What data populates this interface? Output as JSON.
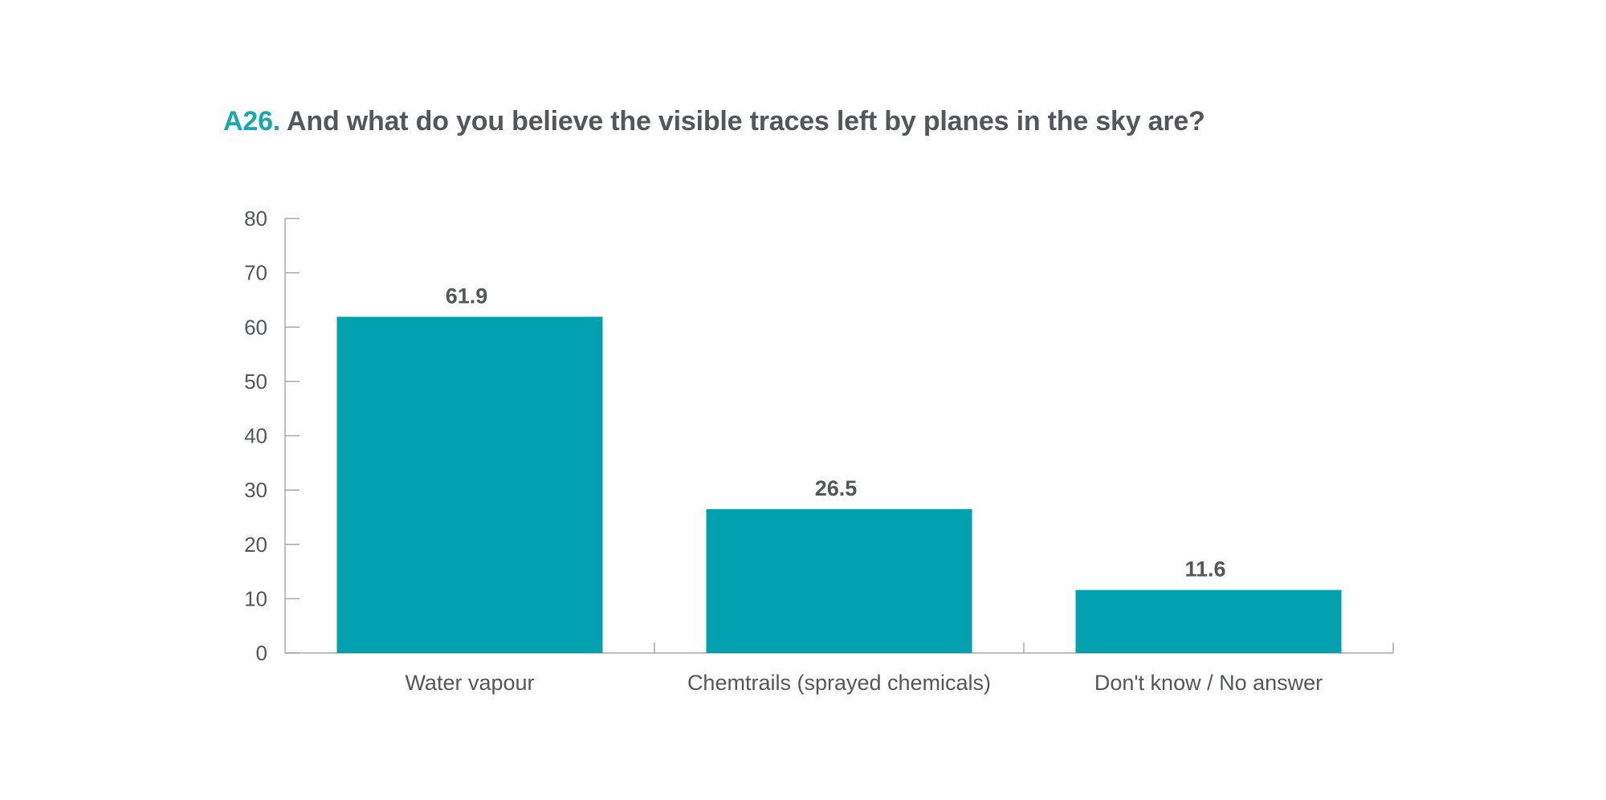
{
  "title": {
    "code": "A26.",
    "text": "And what do you believe the visible traces left by planes in the sky are?"
  },
  "colors": {
    "bar": "#00a0ae",
    "title_code": "#1aa6b5",
    "text": "#55565a",
    "axis": "#a8a8a8"
  },
  "chart_data": {
    "type": "bar",
    "categories": [
      "Water vapour",
      "Chemtrails (sprayed chemicals)",
      "Don't know / No answer"
    ],
    "values": [
      61.9,
      26.5,
      11.6
    ],
    "data_labels": [
      "61.9",
      "26.5",
      "11.6"
    ],
    "ylim": [
      0,
      80
    ],
    "yticks": [
      0,
      10,
      20,
      30,
      40,
      50,
      60,
      70,
      80
    ],
    "xlabel": "",
    "ylabel": "",
    "grid": false,
    "legend": "none"
  }
}
